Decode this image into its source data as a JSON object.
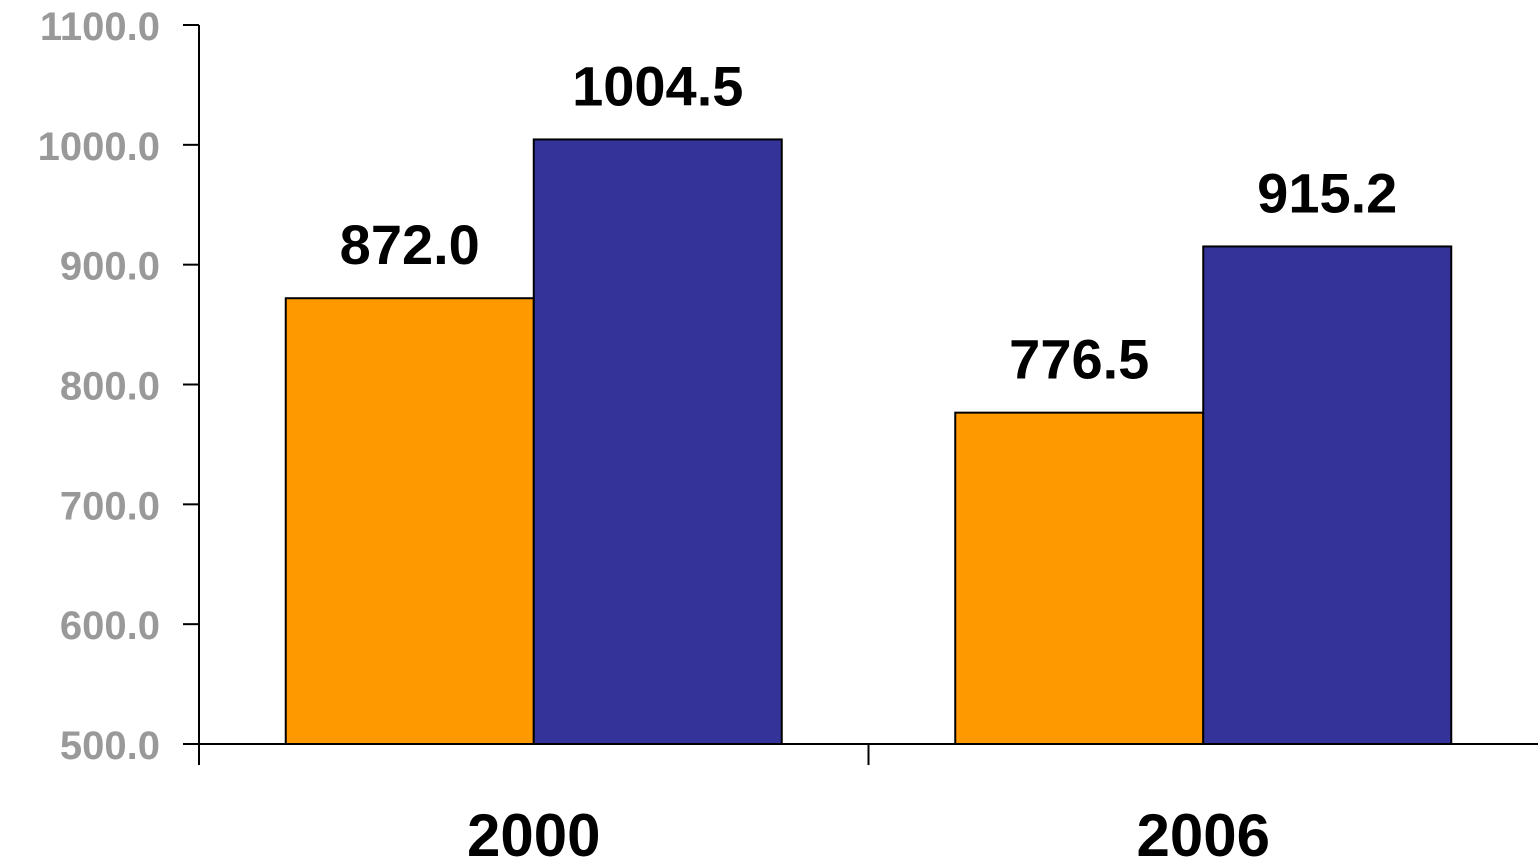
{
  "chart_data": {
    "type": "bar",
    "title": "",
    "xlabel": "",
    "ylabel": "",
    "categories": [
      "2000",
      "2006"
    ],
    "series": [
      {
        "color": "#FF9900",
        "values": [
          872.0,
          776.5
        ]
      },
      {
        "color": "#333399",
        "values": [
          1004.5,
          915.2
        ]
      }
    ],
    "data_labels": [
      [
        "872.0",
        "776.5"
      ],
      [
        "1004.5",
        "915.2"
      ]
    ],
    "ylim": [
      500,
      1100
    ],
    "y_ticks": [
      500,
      600,
      700,
      800,
      900,
      1000,
      1100
    ],
    "y_tick_labels": [
      "500.0",
      "600.0",
      "700.0",
      "800.0",
      "900.0",
      "1000.0",
      "1100.0"
    ],
    "grid": false,
    "legend": "none"
  }
}
